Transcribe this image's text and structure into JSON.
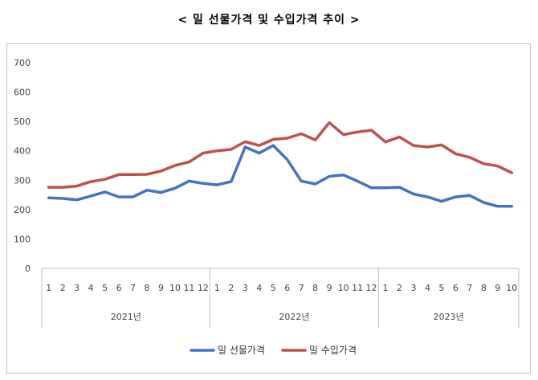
{
  "title": "< 밀 선물가격 및 수입가격 추이 >",
  "colors": {
    "futures": "#4472c4",
    "import": "#c0504d",
    "axis": "#bfbfbf"
  },
  "chart_data": {
    "type": "line",
    "title": "< 밀 선물가격 및 수입가격 추이 >",
    "ylim": [
      0,
      700
    ],
    "yticks": [
      0,
      100,
      200,
      300,
      400,
      500,
      600,
      700
    ],
    "grid": false,
    "legend": "bottom",
    "categories": [
      "1",
      "2",
      "3",
      "4",
      "5",
      "6",
      "7",
      "8",
      "9",
      "10",
      "11",
      "12",
      "1",
      "2",
      "3",
      "4",
      "5",
      "6",
      "7",
      "8",
      "9",
      "10",
      "11",
      "12",
      "1",
      "2",
      "3",
      "4",
      "5",
      "6",
      "7",
      "8",
      "9",
      "10"
    ],
    "year_groups": [
      {
        "label": "2021년",
        "count": 12
      },
      {
        "label": "2022년",
        "count": 12
      },
      {
        "label": "2023년",
        "count": 10
      }
    ],
    "series": [
      {
        "name": "밀 선물가격",
        "values": [
          240,
          238,
          233,
          246,
          260,
          243,
          243,
          266,
          258,
          273,
          297,
          289,
          284,
          295,
          413,
          392,
          418,
          370,
          297,
          287,
          313,
          318,
          297,
          274,
          274,
          276,
          253,
          243,
          228,
          243,
          248,
          224,
          211,
          211
        ]
      },
      {
        "name": "밀 수입가격",
        "values": [
          276,
          276,
          280,
          295,
          303,
          319,
          319,
          320,
          331,
          350,
          362,
          392,
          400,
          405,
          431,
          418,
          439,
          443,
          458,
          437,
          496,
          455,
          464,
          470,
          430,
          447,
          418,
          413,
          420,
          390,
          378,
          356,
          348,
          325
        ]
      }
    ]
  }
}
